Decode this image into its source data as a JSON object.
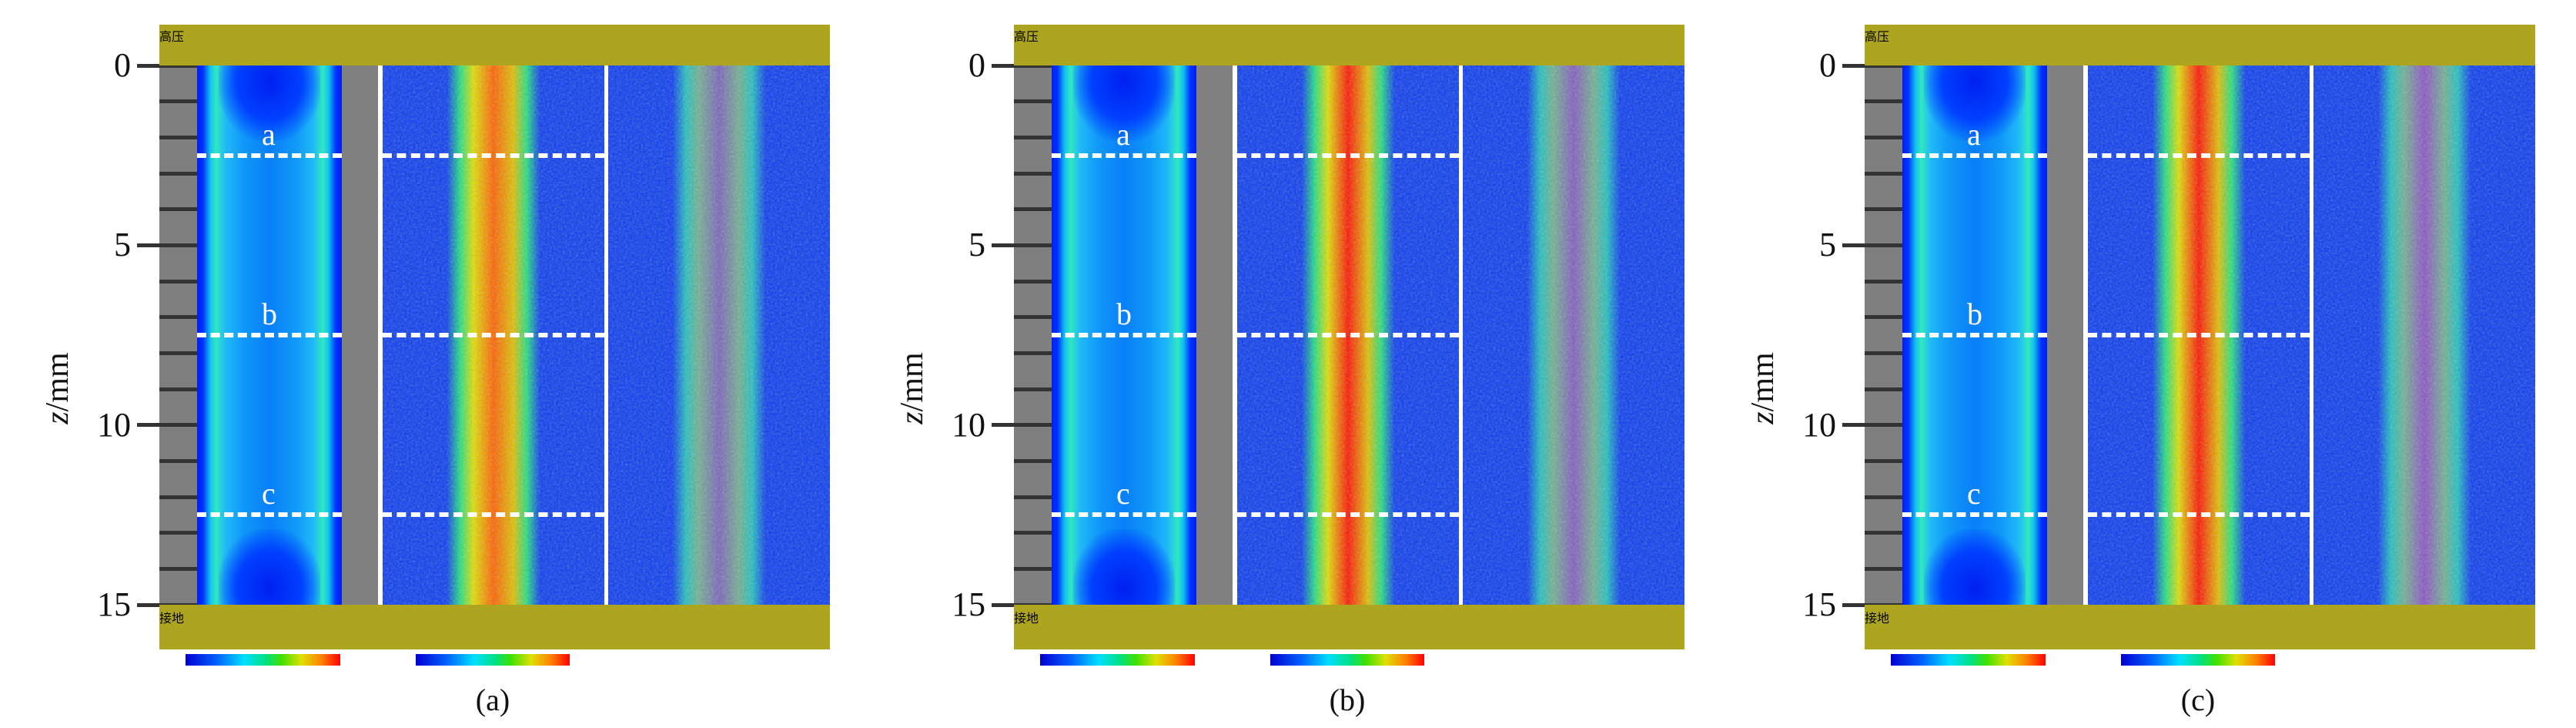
{
  "axis": {
    "label_var": "z",
    "label_unit": "/mm",
    "ticks": [
      0,
      5,
      10,
      15
    ],
    "range_mm": [
      0,
      15
    ]
  },
  "labels": {
    "top_electrode": "高压",
    "bottom_electrode": "接地"
  },
  "section_lines": [
    {
      "label": "a",
      "z_mm": 2.5
    },
    {
      "label": "b",
      "z_mm": 7.5
    },
    {
      "label": "c",
      "z_mm": 12.5
    }
  ],
  "panels": [
    {
      "caption": "(a)",
      "intensity": 0.55
    },
    {
      "caption": "(b)",
      "intensity": 0.75
    },
    {
      "caption": "(c)",
      "intensity": 0.95
    }
  ],
  "colors": {
    "electrode": "#ada41f",
    "ruler": "#7f7f7f",
    "background_blue": "#0a3cf0"
  },
  "colormap": [
    "#0000d0",
    "#00e0ff",
    "#40e000",
    "#e0e000",
    "#ff0000"
  ]
}
